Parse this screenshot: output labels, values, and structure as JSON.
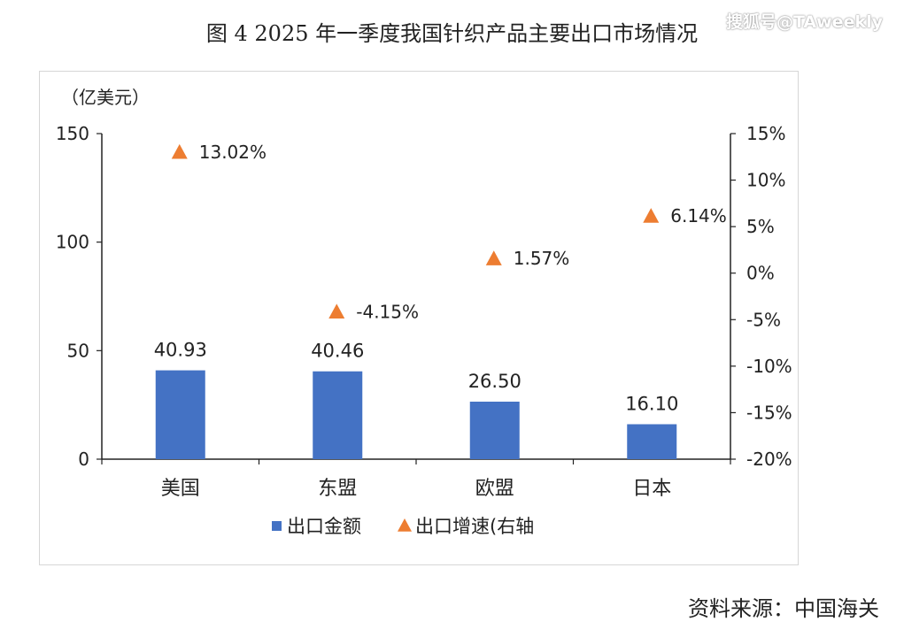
{
  "figure": {
    "title": "图 4   2025 年一季度我国针织产品主要出口市场情况",
    "watermark": "搜狐号@TAweekly",
    "source": "资料来源：中国海关"
  },
  "chart_data": {
    "type": "bar",
    "categories": [
      "美国",
      "东盟",
      "欧盟",
      "日本"
    ],
    "ylabel": "（亿美元）",
    "ylim": [
      0,
      150
    ],
    "yticks": [
      0,
      50,
      100,
      150
    ],
    "y2lim": [
      -0.2,
      0.15
    ],
    "y2ticks": [
      "-20%",
      "-15%",
      "-10%",
      "-5%",
      "0%",
      "5%",
      "10%",
      "15%"
    ],
    "y2tick_values": [
      -0.2,
      -0.15,
      -0.1,
      -0.05,
      0.0,
      0.05,
      0.1,
      0.15
    ],
    "series": [
      {
        "name": "出口金额",
        "type": "bar",
        "axis": "left",
        "color": "#4472C4",
        "values": [
          40.93,
          40.46,
          26.5,
          16.1
        ],
        "labels": [
          "40.93",
          "40.46",
          "26.50",
          "16.10"
        ]
      },
      {
        "name": "出口增速(右轴",
        "type": "scatter",
        "marker": "triangle",
        "axis": "right",
        "color": "#ED7D31",
        "values": [
          0.1302,
          -0.0415,
          0.0157,
          0.0614
        ],
        "labels": [
          "13.02%",
          "-4.15%",
          "1.57%",
          "6.14%"
        ]
      }
    ],
    "legend": "bottom",
    "grid": false
  }
}
